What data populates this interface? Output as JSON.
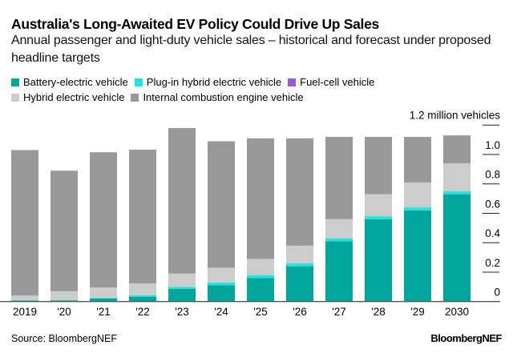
{
  "header": {
    "title": "Australia's Long-Awaited EV Policy Could Drive Up Sales",
    "subtitle": "Annual passenger and light-duty vehicle sales – historical and forecast under proposed headline targets"
  },
  "footer": {
    "source": "Source: BloombergNEF",
    "logo": "BloombergNEF"
  },
  "chart_data": {
    "type": "bar",
    "stacked": true,
    "title": "Australia's Long-Awaited EV Policy Could Drive Up Sales",
    "subtitle": "Annual passenger and light-duty vehicle sales – historical and forecast under proposed headline targets",
    "ylabel": "1.2 million vehicles",
    "categories": [
      "2019",
      "'20",
      "'21",
      "'22",
      "'23",
      "'24",
      "'25",
      "'26",
      "'27",
      "'28",
      "'29",
      "2030"
    ],
    "yticks": [
      0,
      0.2,
      0.4,
      0.6,
      0.8,
      1.0,
      1.2
    ],
    "ytick_labels": [
      "0",
      "0.2",
      "0.4",
      "0.6",
      "0.8",
      "1.0"
    ],
    "ylim": [
      0,
      1.2
    ],
    "legend_placement": "top",
    "grid": false,
    "series": [
      {
        "name": "Battery-electric vehicle",
        "color": "#00a69c",
        "values": [
          0.006,
          0.007,
          0.02,
          0.033,
          0.087,
          0.11,
          0.16,
          0.24,
          0.41,
          0.56,
          0.62,
          0.73
        ]
      },
      {
        "name": "Plug-in hybrid electric vehicle",
        "color": "#1ee6e0",
        "values": [
          0.004,
          0.003,
          0.005,
          0.01,
          0.013,
          0.02,
          0.02,
          0.02,
          0.02,
          0.02,
          0.02,
          0.02
        ]
      },
      {
        "name": "Fuel-cell vehicle",
        "color": "#a259d9",
        "values": [
          0,
          0,
          0,
          0,
          0,
          0,
          0,
          0,
          0,
          0,
          0,
          0
        ]
      },
      {
        "name": "Hybrid electric vehicle",
        "color": "#cccccc",
        "values": [
          0.03,
          0.06,
          0.07,
          0.08,
          0.09,
          0.1,
          0.11,
          0.12,
          0.13,
          0.15,
          0.17,
          0.19
        ]
      },
      {
        "name": "Internal combustion engine vehicle",
        "color": "#999999",
        "values": [
          0.99,
          0.82,
          0.92,
          0.91,
          0.99,
          0.86,
          0.82,
          0.73,
          0.56,
          0.39,
          0.31,
          0.19
        ]
      }
    ]
  }
}
